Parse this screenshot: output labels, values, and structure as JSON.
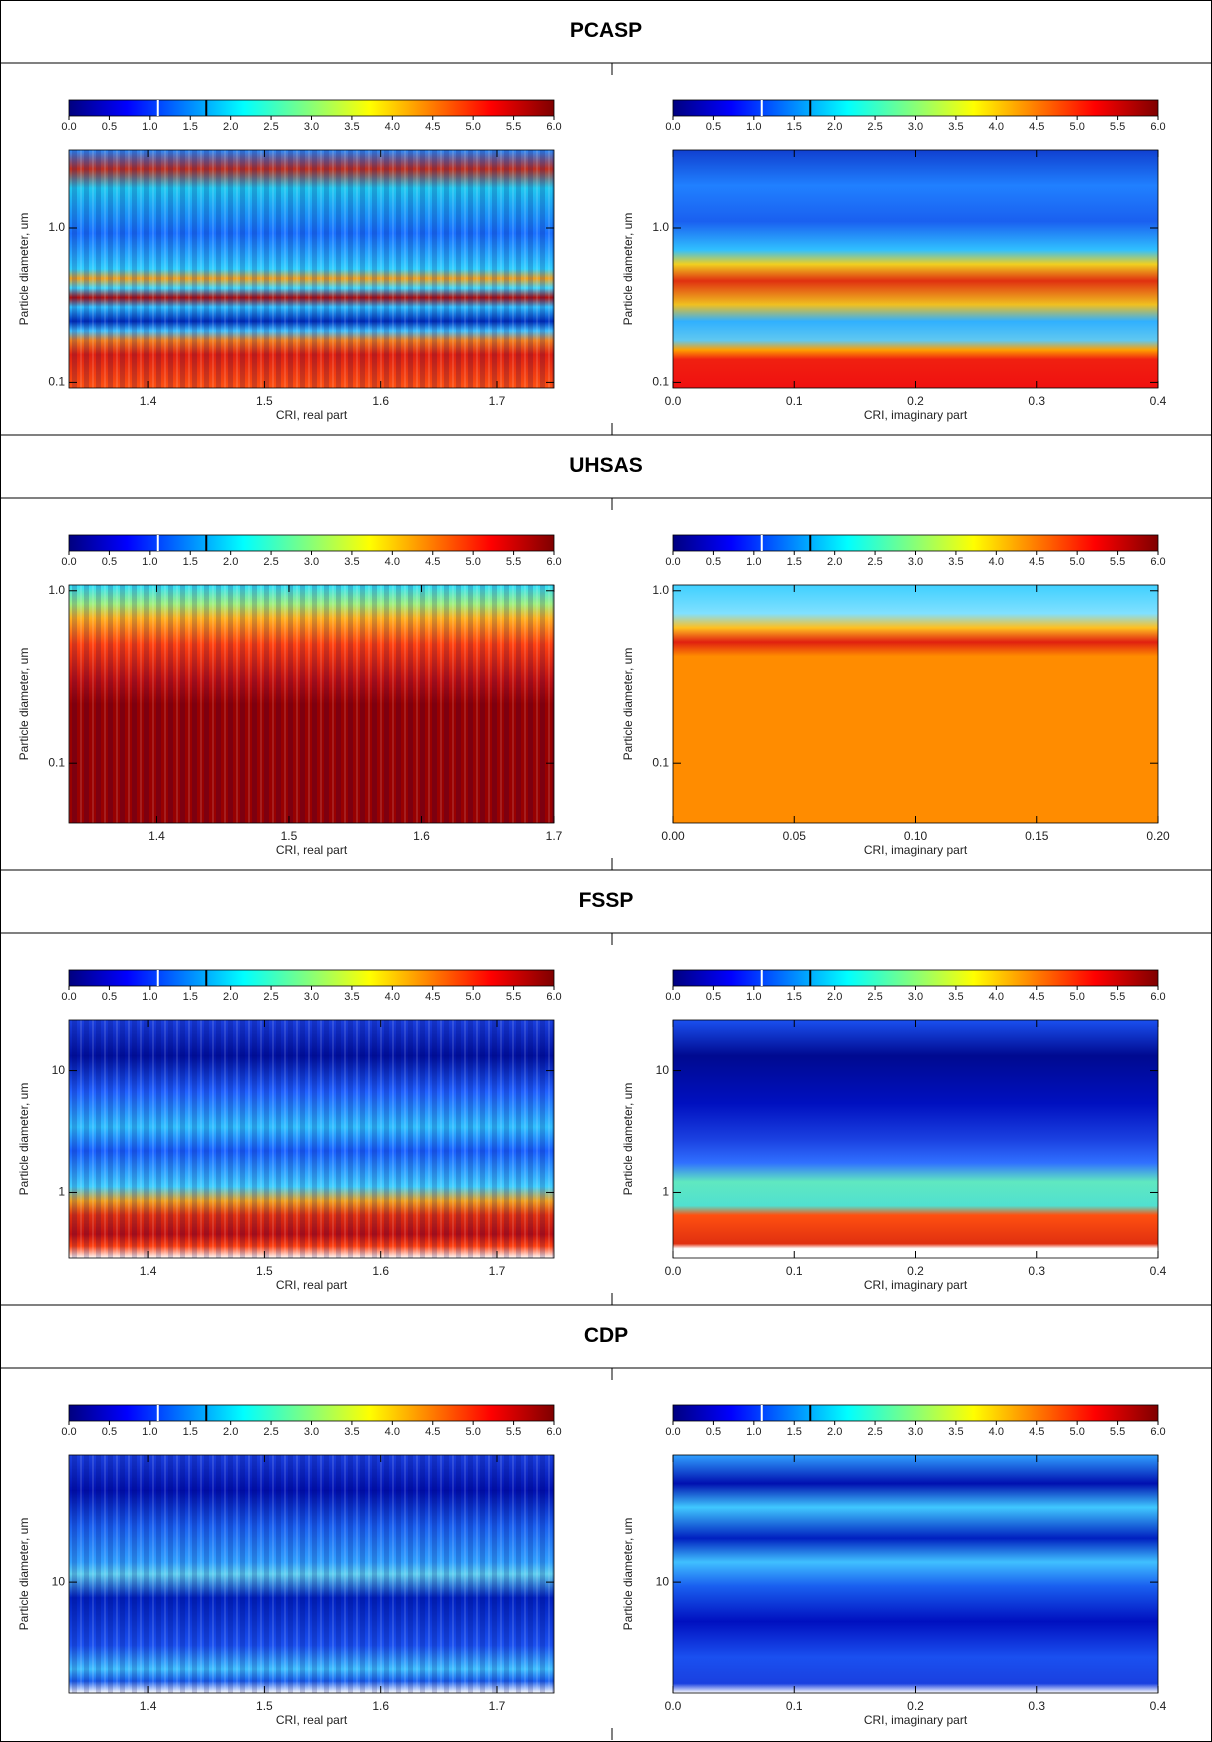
{
  "colorbar": {
    "lim": [
      0,
      6
    ],
    "ticks": [
      {
        "value": 0,
        "label": "0.0"
      },
      {
        "value": 0.5,
        "label": "0.5"
      },
      {
        "value": 1,
        "label": "1.0"
      },
      {
        "value": 1.5,
        "label": "1.5"
      },
      {
        "value": 2,
        "label": "2.0"
      },
      {
        "value": 2.5,
        "label": "2.5"
      },
      {
        "value": 3,
        "label": "3.0"
      },
      {
        "value": 3.5,
        "label": "3.5"
      },
      {
        "value": 4,
        "label": "4.0"
      },
      {
        "value": 4.5,
        "label": "4.5"
      },
      {
        "value": 5,
        "label": "5.0"
      },
      {
        "value": 5.5,
        "label": "5.5"
      },
      {
        "value": 6,
        "label": "6.0"
      }
    ]
  },
  "sections": [
    {
      "title": "PCASP",
      "panels": [
        {
          "xlabel": "CRI, real part",
          "ylabel": "Particle diameter, um",
          "xlim": [
            1.332,
            1.749
          ],
          "xticks": [
            1.4,
            1.5,
            1.6,
            1.7
          ],
          "ylim": [
            0.092,
            3.2
          ],
          "yticks": [
            0.1,
            {
              "value": 1,
              "label": "1.0"
            }
          ]
        },
        {
          "xlabel": "CRI, imaginary part",
          "ylabel": "Particle diameter, um",
          "xlim": [
            0,
            0.4
          ],
          "xticks": [
            {
              "value": 0,
              "label": "0.0"
            },
            0.1,
            0.2,
            0.3,
            0.4
          ],
          "ylim": [
            0.092,
            3.2
          ],
          "yticks": [
            0.1,
            {
              "value": 1,
              "label": "1.0"
            }
          ]
        }
      ]
    },
    {
      "title": "UHSAS",
      "panels": [
        {
          "xlabel": "CRI, real part",
          "ylabel": "Particle diameter, um",
          "xlim": [
            1.334,
            1.7
          ],
          "xticks": [
            1.4,
            1.5,
            1.6,
            1.7
          ],
          "ylim": [
            0.045,
            1.08
          ],
          "yticks": [
            0.1,
            {
              "value": 1,
              "label": "1.0"
            }
          ]
        },
        {
          "xlabel": "CRI, imaginary part",
          "ylabel": "Particle diameter, um",
          "xlim": [
            0,
            0.2
          ],
          "xticks": [
            {
              "value": 0,
              "label": "0.00"
            },
            0.05,
            {
              "value": 0.1,
              "label": "0.10"
            },
            0.15,
            {
              "value": 0.2,
              "label": "0.20"
            }
          ],
          "ylim": [
            0.045,
            1.08
          ],
          "yticks": [
            0.1,
            {
              "value": 1,
              "label": "1.0"
            }
          ]
        }
      ]
    },
    {
      "title": "FSSP",
      "panels": [
        {
          "xlabel": "CRI, real part",
          "ylabel": "Particle diameter, um",
          "xlim": [
            1.332,
            1.749
          ],
          "xticks": [
            1.4,
            1.5,
            1.6,
            1.7
          ],
          "ylim": [
            0.29,
            26
          ],
          "yticks": [
            1,
            10
          ]
        },
        {
          "xlabel": "CRI, imaginary part",
          "ylabel": "Particle diameter, um",
          "xlim": [
            0,
            0.4
          ],
          "xticks": [
            {
              "value": 0,
              "label": "0.0"
            },
            0.1,
            0.2,
            0.3,
            0.4
          ],
          "ylim": [
            0.29,
            26
          ],
          "yticks": [
            1,
            10
          ]
        }
      ]
    },
    {
      "title": "CDP",
      "panels": [
        {
          "xlabel": "CRI, real part",
          "ylabel": "Particle diameter, um",
          "xlim": [
            1.332,
            1.749
          ],
          "xticks": [
            1.4,
            1.5,
            1.6,
            1.7
          ],
          "ylim": [
            2.5,
            49
          ],
          "yticks": [
            10
          ]
        },
        {
          "xlabel": "CRI, imaginary part",
          "ylabel": "Particle diameter, um",
          "xlim": [
            0,
            0.4
          ],
          "xticks": [
            {
              "value": 0,
              "label": "0.0"
            },
            0.1,
            0.2,
            0.3,
            0.4
          ],
          "ylim": [
            2.5,
            49
          ],
          "yticks": [
            10
          ]
        }
      ]
    }
  ]
}
